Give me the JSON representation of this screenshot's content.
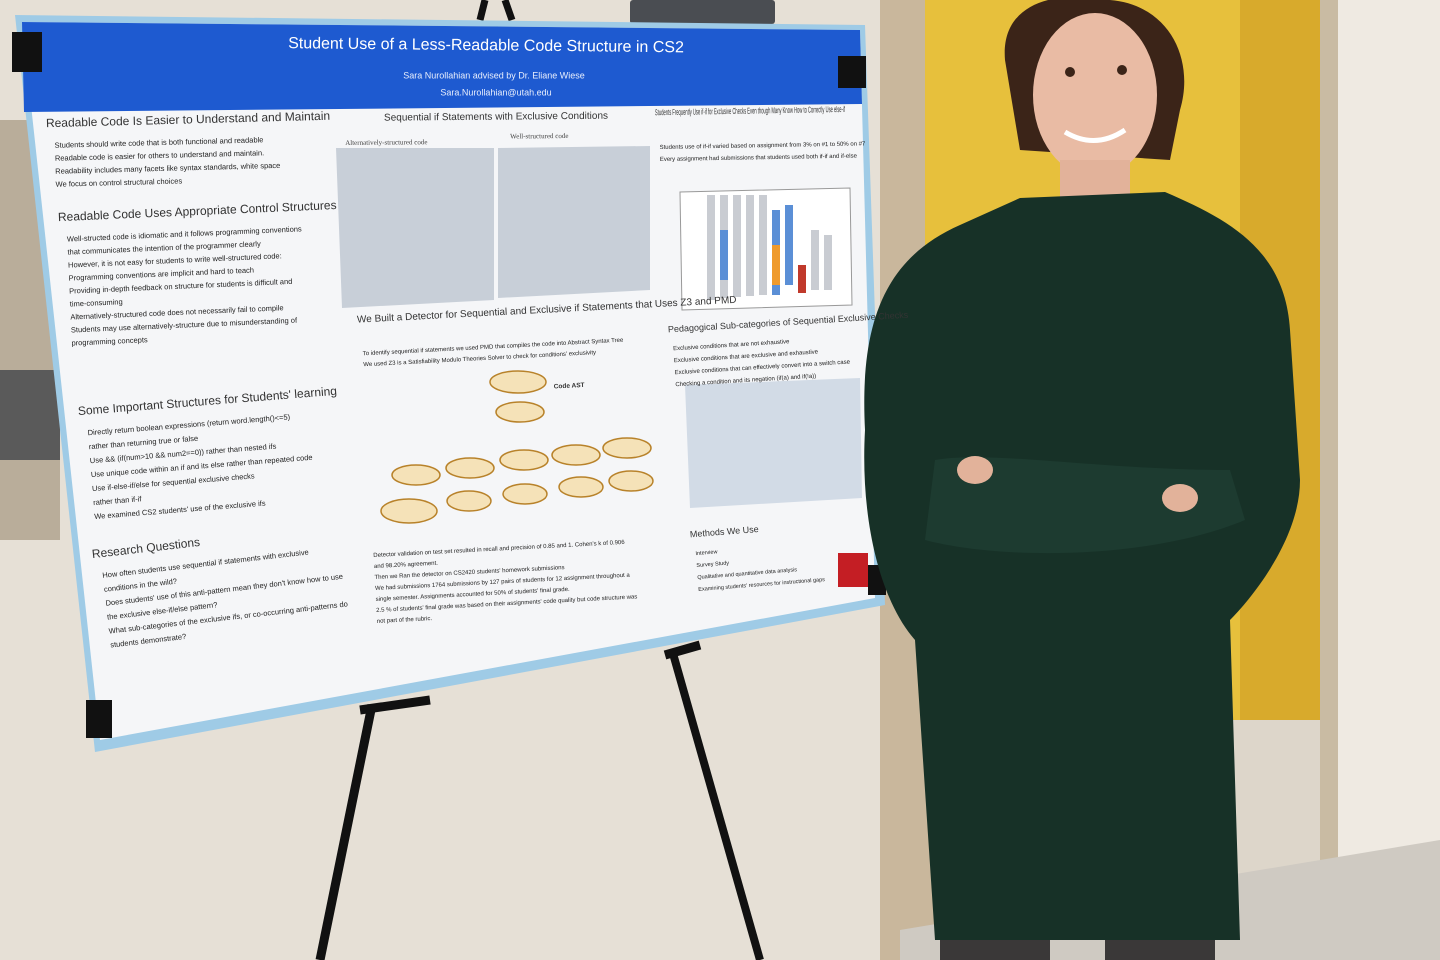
{
  "poster": {
    "title": "Student Use of a Less-Readable Code Structure in CS2",
    "authors": "Sara Nurollahian advised by Dr. Eliane Wiese",
    "email": "Sara.Nurollahian@utah.edu",
    "sections": [
      {
        "heading": "Readable Code Is Easier to Understand and Maintain",
        "lines": [
          "Students should write code that is both functional and readable",
          "Readable code is easier for others to understand and maintain.",
          "Readability includes many facets like syntax standards, white space",
          "We focus on control structural choices"
        ]
      },
      {
        "heading": "Readable Code Uses Appropriate Control Structures",
        "lines": [
          "Well-structed code is idiomatic and it follows programming conventions",
          "that communicates the intention of the programmer clearly",
          "However, it is not easy for students to write well-structured code:",
          "Programming conventions are implicit and hard to teach",
          "Providing in-depth feedback on structure for students is difficult and",
          "time-consuming",
          "Alternatively-structured code does not necessarily fail to compile",
          "Students may use alternatively-structure due to misunderstanding of",
          "programming concepts"
        ]
      },
      {
        "heading": "Some Important Structures for Students' learning",
        "lines": [
          "Directly return boolean expressions (return word.length()<=5)",
          "rather than returning true or false",
          "Use && (if(num>10 && num2==0)) rather than nested ifs",
          "Use unique code within an if and its else rather than repeated code",
          "Use if-else-if/else for sequential exclusive checks",
          "rather than if-if",
          "We examined CS2 students' use of the exclusive ifs"
        ]
      },
      {
        "heading": "Research Questions",
        "lines": [
          "How often students use sequential if statements with exclusive",
          "conditions in the wild?",
          "Does students' use of this anti-pattern mean they don't know how to use",
          "the exclusive else-if/else pattern?",
          "What sub-categories of the exclusive ifs, or co-occurring anti-patterns do",
          "students demonstrate?"
        ]
      },
      {
        "heading": "Sequential if Statements with Exclusive Conditions",
        "lines": [
          "Alternatively-structured code",
          "Well-structured code"
        ]
      },
      {
        "heading": "We Built a Detector for Sequential and Exclusive if Statements that Uses Z3 and PMD",
        "lines": [
          "To identify sequential if statements we used PMD that compiles the code into Abstract Syntax Tree",
          "We used Z3 is a Satisfiability Modulo Theories Solver to check for conditions' exclusivity",
          "Code AST",
          "Detector validation on test set resulted in recall and precision of 0.85 and 1. Cohen's k of 0.906",
          "and 98.20% agreement.",
          "Then we Ran the detector on CS2420 students' homework submissions",
          "We had submissions 1764 submissions by 127 pairs of students for 12 assignment throughout a",
          "single semester. Assignments accounted for 50% of students' final grade.",
          "2.5 % of students' final grade was based on their assignments' code quality but code structure was",
          "not part of the rubric."
        ]
      },
      {
        "heading": "Students Frequently Use if-if for Exclusive Checks Even though Many Know How to Correctly Use else-if",
        "lines": [
          "Students use of if-if varied based on assignment from 3% on #1 to 50% on #7",
          "Every assignment had submissions that students used both if-if and if-else"
        ]
      },
      {
        "heading": "Pedagogical Sub-categories of Sequential Exclusive Checks",
        "lines": [
          "Exclusive conditions that are not exhaustive",
          "Exclusive conditions that are exclusive and exhaustive",
          "Exclusive conditions that can effectively convert into a switch case",
          "Checking a condition and its negation (if(a) and if(!a))"
        ]
      },
      {
        "heading": "Methods We Use",
        "lines": [
          "Interview",
          "Survey Study",
          "Qualitative and quantitative data analysis",
          "Examining students' resources for instructional gaps"
        ]
      }
    ]
  }
}
